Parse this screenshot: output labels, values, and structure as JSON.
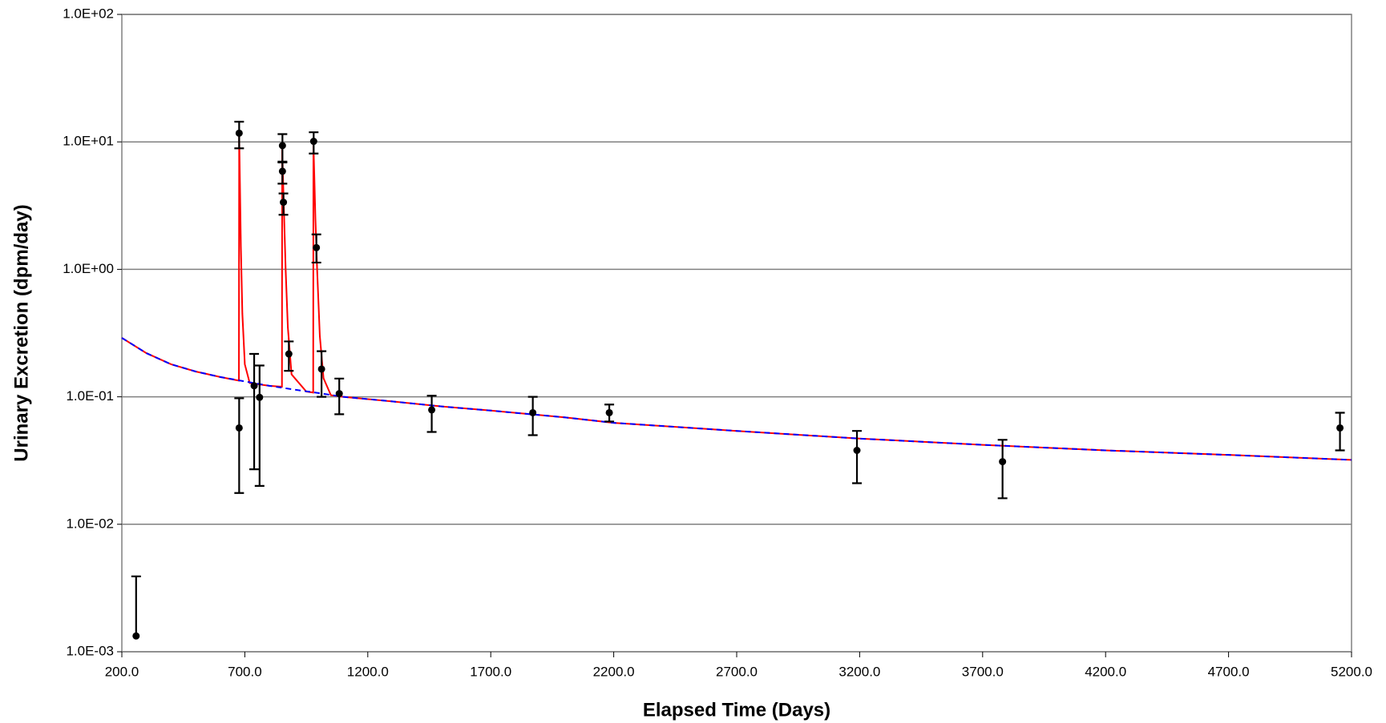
{
  "chart_data": {
    "type": "scatter",
    "log_y": true,
    "grid": true,
    "x_label": "Elapsed Time (Days)",
    "y_label": "Urinary Excretion (dpm/day)",
    "xlim": [
      200,
      5200
    ],
    "xticks": [
      {
        "value": 200,
        "label": "200.0"
      },
      {
        "value": 700,
        "label": "700.0"
      },
      {
        "value": 1200,
        "label": "1200.0"
      },
      {
        "value": 1700,
        "label": "1700.0"
      },
      {
        "value": 2200,
        "label": "2200.0"
      },
      {
        "value": 2700,
        "label": "2700.0"
      },
      {
        "value": 3200,
        "label": "3200.0"
      },
      {
        "value": 3700,
        "label": "3700.0"
      },
      {
        "value": 4200,
        "label": "4200.0"
      },
      {
        "value": 4700,
        "label": "4700.0"
      },
      {
        "value": 5200,
        "label": "5200.0"
      }
    ],
    "ylim": [
      0.001,
      100
    ],
    "yticks": [
      {
        "value": 0.001,
        "label": "1.0E-03"
      },
      {
        "value": 0.01,
        "label": "1.0E-02"
      },
      {
        "value": 0.1,
        "label": "1.0E-01"
      },
      {
        "value": 1,
        "label": "1.0E+00"
      },
      {
        "value": 10,
        "label": "1.0E+01"
      },
      {
        "value": 100,
        "label": "1.0E+02"
      }
    ],
    "series": [
      {
        "type": "line",
        "color": "#ff0000",
        "x": [
          200,
          300,
          400,
          500,
          600,
          676,
          677,
          680,
          684,
          690,
          700,
          720,
          800,
          851,
          852,
          855,
          860,
          866,
          875,
          890,
          950,
          978,
          979,
          982,
          987,
          994,
          1005,
          1020,
          1050,
          1100,
          1300,
          1500,
          1700,
          2000,
          2200,
          2700,
          3200,
          3700,
          4200,
          4700,
          5200
        ],
        "values": [
          0.29,
          0.22,
          0.18,
          0.158,
          0.143,
          0.134,
          11.5,
          5,
          1.5,
          0.45,
          0.18,
          0.128,
          0.122,
          0.12,
          9.4,
          5.5,
          2.5,
          1.0,
          0.35,
          0.15,
          0.11,
          0.108,
          10,
          6,
          2.5,
          1.0,
          0.3,
          0.14,
          0.103,
          0.1,
          0.092,
          0.084,
          0.078,
          0.069,
          0.0625,
          0.054,
          0.047,
          0.042,
          0.038,
          0.035,
          0.032
        ]
      },
      {
        "type": "line",
        "color": "#0000ff",
        "dashed": true,
        "x": [
          200,
          300,
          400,
          500,
          600,
          700,
          800,
          900,
          1000,
          1100,
          1300,
          1500,
          1700,
          2000,
          2200,
          2700,
          3200,
          3700,
          4200,
          4700,
          5200
        ],
        "values": [
          0.29,
          0.22,
          0.18,
          0.158,
          0.143,
          0.132,
          0.122,
          0.114,
          0.107,
          0.1,
          0.092,
          0.084,
          0.078,
          0.069,
          0.0625,
          0.054,
          0.047,
          0.042,
          0.038,
          0.035,
          0.032
        ]
      },
      {
        "type": "points",
        "color": "#000000",
        "x": [
          258,
          677,
          677,
          738,
          760,
          853,
          853,
          857,
          879,
          980,
          991,
          1012,
          1084,
          1460,
          1871,
          2182,
          3189,
          3781,
          5153
        ],
        "values": [
          0.00133,
          11.7,
          0.057,
          0.122,
          0.099,
          9.35,
          5.88,
          3.36,
          0.217,
          10.1,
          1.48,
          0.165,
          0.106,
          0.079,
          0.075,
          0.075,
          0.038,
          0.031,
          0.057
        ],
        "lower": [
          null,
          8.9,
          0.0176,
          0.027,
          0.02,
          7.0,
          4.7,
          2.68,
          0.16,
          8.1,
          1.13,
          0.1,
          0.073,
          0.053,
          0.05,
          0.064,
          0.021,
          0.016,
          0.038
        ],
        "upper": [
          0.0039,
          14.4,
          0.0975,
          0.217,
          0.176,
          11.5,
          6.9,
          3.94,
          0.272,
          11.9,
          1.88,
          0.228,
          0.139,
          0.102,
          0.1,
          0.087,
          0.054,
          0.046,
          0.075
        ]
      }
    ]
  }
}
